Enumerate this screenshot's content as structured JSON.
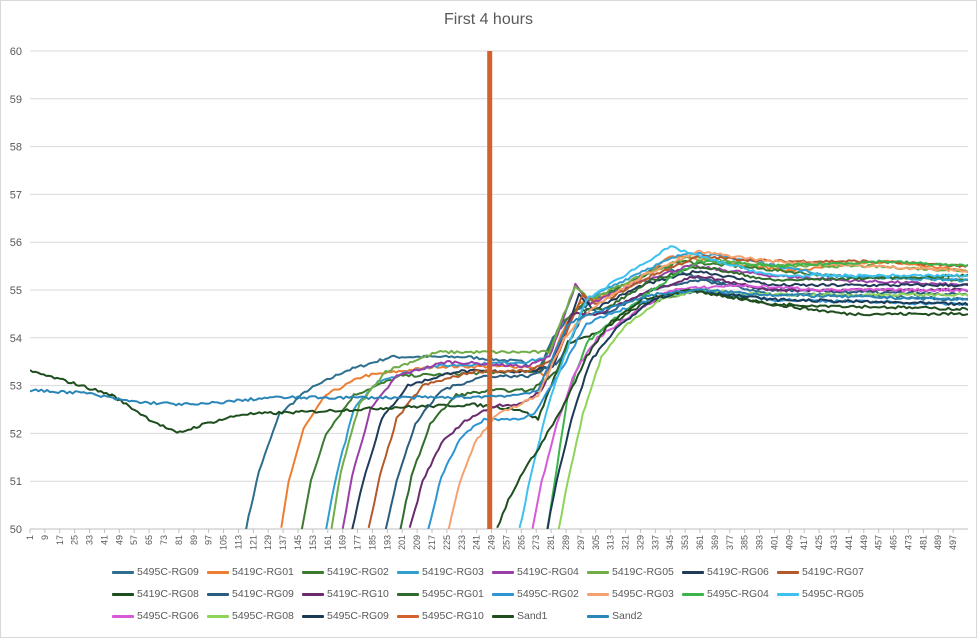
{
  "chart_data": {
    "type": "line",
    "title": "First 4 hours",
    "xlabel": "",
    "ylabel": "",
    "ylim": [
      50,
      60
    ],
    "yticks": [
      50,
      51,
      52,
      53,
      54,
      55,
      56,
      57,
      58,
      59,
      60
    ],
    "xlim": [
      1,
      505
    ],
    "xticks": [
      1,
      9,
      17,
      25,
      33,
      41,
      49,
      57,
      65,
      73,
      81,
      89,
      97,
      105,
      113,
      121,
      129,
      137,
      145,
      153,
      161,
      169,
      177,
      185,
      193,
      201,
      209,
      217,
      225,
      233,
      241,
      249,
      257,
      265,
      273,
      281,
      289,
      297,
      305,
      313,
      321,
      329,
      337,
      345,
      353,
      361,
      369,
      377,
      385,
      393,
      401,
      409,
      417,
      425,
      433,
      441,
      449,
      457,
      465,
      473,
      481,
      489,
      497
    ],
    "grid": "horizontal",
    "legend_position": "bottom",
    "series": [
      {
        "name": "5495C-RG09",
        "color": "#2e6e8e",
        "points": [
          [
            117,
            50
          ],
          [
            124,
            51.2
          ],
          [
            135,
            52.4
          ],
          [
            150,
            52.9
          ],
          [
            170,
            53.3
          ],
          [
            195,
            53.6
          ],
          [
            235,
            53.6
          ],
          [
            265,
            53.5
          ],
          [
            274,
            53.3
          ],
          [
            282,
            54
          ],
          [
            292,
            54.5
          ],
          [
            310,
            54.9
          ],
          [
            340,
            55.5
          ],
          [
            365,
            55.2
          ],
          [
            400,
            54.9
          ],
          [
            440,
            54.9
          ],
          [
            505,
            54.8
          ]
        ]
      },
      {
        "name": "5419C-RG01",
        "color": "#ed7d31",
        "points": [
          [
            136,
            50
          ],
          [
            140,
            51
          ],
          [
            148,
            52.1
          ],
          [
            160,
            52.8
          ],
          [
            180,
            53.2
          ],
          [
            220,
            53.4
          ],
          [
            270,
            53.4
          ],
          [
            278,
            53.2
          ],
          [
            288,
            54.2
          ],
          [
            296,
            54.7
          ],
          [
            320,
            55
          ],
          [
            345,
            55.7
          ],
          [
            370,
            55.6
          ],
          [
            410,
            55.4
          ],
          [
            460,
            55.6
          ],
          [
            505,
            55.4
          ]
        ]
      },
      {
        "name": "5419C-RG02",
        "color": "#3d7a32",
        "points": [
          [
            147,
            50
          ],
          [
            152,
            51
          ],
          [
            160,
            52
          ],
          [
            175,
            52.8
          ],
          [
            200,
            53.2
          ],
          [
            265,
            53.3
          ],
          [
            275,
            53.3
          ],
          [
            286,
            54.3
          ],
          [
            298,
            54.7
          ],
          [
            325,
            55.2
          ],
          [
            350,
            55.6
          ],
          [
            380,
            55.5
          ],
          [
            430,
            55.3
          ],
          [
            505,
            55.2
          ]
        ]
      },
      {
        "name": "5419C-RG03",
        "color": "#2f9fd0",
        "points": [
          [
            160,
            50
          ],
          [
            166,
            51.2
          ],
          [
            175,
            52.5
          ],
          [
            188,
            53.1
          ],
          [
            215,
            53.4
          ],
          [
            268,
            53.5
          ],
          [
            280,
            53.6
          ],
          [
            294,
            55.1
          ],
          [
            300,
            54.8
          ],
          [
            330,
            55.4
          ],
          [
            355,
            55.8
          ],
          [
            390,
            55.6
          ],
          [
            430,
            55.3
          ],
          [
            505,
            55.2
          ]
        ]
      },
      {
        "name": "5419C-RG04",
        "color": "#9b3fa8",
        "points": [
          [
            169,
            50
          ],
          [
            174,
            51.1
          ],
          [
            184,
            52.5
          ],
          [
            198,
            53.2
          ],
          [
            225,
            53.5
          ],
          [
            268,
            53.4
          ],
          [
            280,
            53.6
          ],
          [
            294,
            55.1
          ],
          [
            302,
            54.7
          ],
          [
            330,
            55.2
          ],
          [
            355,
            55.5
          ],
          [
            400,
            55.3
          ],
          [
            440,
            55.2
          ],
          [
            505,
            55.1
          ]
        ]
      },
      {
        "name": "5419C-RG05",
        "color": "#70ad47",
        "points": [
          [
            163,
            50
          ],
          [
            168,
            51.2
          ],
          [
            178,
            52.6
          ],
          [
            192,
            53.3
          ],
          [
            220,
            53.7
          ],
          [
            268,
            53.7
          ],
          [
            280,
            53.7
          ],
          [
            294,
            55.1
          ],
          [
            302,
            54.8
          ],
          [
            330,
            55.3
          ],
          [
            355,
            55.7
          ],
          [
            400,
            55.5
          ],
          [
            450,
            55.5
          ],
          [
            505,
            55.4
          ]
        ]
      },
      {
        "name": "5419C-RG06",
        "color": "#1f3b57",
        "points": [
          [
            174,
            50
          ],
          [
            180,
            51
          ],
          [
            190,
            52.3
          ],
          [
            204,
            53
          ],
          [
            230,
            53.3
          ],
          [
            270,
            53.3
          ],
          [
            282,
            53.4
          ],
          [
            296,
            54.9
          ],
          [
            304,
            54.6
          ],
          [
            330,
            55.1
          ],
          [
            360,
            55.4
          ],
          [
            400,
            55.1
          ],
          [
            450,
            55.1
          ],
          [
            505,
            55.1
          ]
        ]
      },
      {
        "name": "5419C-RG07",
        "color": "#b45a2a",
        "points": [
          [
            183,
            50
          ],
          [
            189,
            51.1
          ],
          [
            198,
            52.3
          ],
          [
            212,
            53
          ],
          [
            240,
            53.3
          ],
          [
            270,
            53.3
          ],
          [
            284,
            53.6
          ],
          [
            298,
            54.9
          ],
          [
            306,
            54.7
          ],
          [
            335,
            55.3
          ],
          [
            360,
            55.7
          ],
          [
            400,
            55.6
          ],
          [
            450,
            55.6
          ],
          [
            505,
            55.5
          ]
        ]
      },
      {
        "name": "5419C-RG08",
        "color": "#1e4d1e",
        "points": [
          [
            1,
            53.3
          ],
          [
            20,
            53.1
          ],
          [
            45,
            52.8
          ],
          [
            65,
            52.3
          ],
          [
            80,
            52
          ],
          [
            95,
            52.2
          ],
          [
            115,
            52.4
          ],
          [
            150,
            52.45
          ],
          [
            200,
            52.55
          ],
          [
            240,
            52.6
          ],
          [
            264,
            52.5
          ],
          [
            274,
            52.3
          ],
          [
            290,
            53.9
          ],
          [
            306,
            54.1
          ],
          [
            330,
            54.7
          ],
          [
            360,
            55
          ],
          [
            400,
            54.7
          ],
          [
            440,
            54.5
          ],
          [
            505,
            54.5
          ]
        ]
      },
      {
        "name": "5419C-RG09",
        "color": "#2a5d80",
        "points": [
          [
            192,
            50
          ],
          [
            198,
            51
          ],
          [
            208,
            52.2
          ],
          [
            222,
            52.9
          ],
          [
            245,
            53.2
          ],
          [
            270,
            53.2
          ],
          [
            285,
            53.5
          ],
          [
            300,
            54.6
          ],
          [
            310,
            54.5
          ],
          [
            335,
            55
          ],
          [
            360,
            55.2
          ],
          [
            400,
            55
          ],
          [
            505,
            54.9
          ]
        ]
      },
      {
        "name": "5419C-RG10",
        "color": "#6a2a6e",
        "points": [
          [
            205,
            50
          ],
          [
            212,
            51
          ],
          [
            222,
            51.8
          ],
          [
            236,
            52.3
          ],
          [
            252,
            52.6
          ],
          [
            264,
            52.6
          ],
          [
            276,
            52.9
          ],
          [
            292,
            54.5
          ],
          [
            306,
            54.5
          ],
          [
            335,
            55
          ],
          [
            360,
            55.3
          ],
          [
            400,
            55
          ],
          [
            505,
            55
          ]
        ]
      },
      {
        "name": "5495C-RG01",
        "color": "#2f6b2a",
        "points": [
          [
            200,
            50
          ],
          [
            206,
            51.1
          ],
          [
            216,
            52.2
          ],
          [
            230,
            52.8
          ],
          [
            250,
            52.9
          ],
          [
            270,
            52.9
          ],
          [
            284,
            53.3
          ],
          [
            298,
            54.6
          ],
          [
            310,
            54.6
          ],
          [
            335,
            55.2
          ],
          [
            360,
            55.5
          ],
          [
            400,
            55.2
          ],
          [
            505,
            55.3
          ]
        ]
      },
      {
        "name": "5495C-RG02",
        "color": "#2e95d3",
        "points": [
          [
            215,
            50
          ],
          [
            222,
            51.1
          ],
          [
            232,
            51.9
          ],
          [
            245,
            52.3
          ],
          [
            262,
            52.3
          ],
          [
            272,
            52.4
          ],
          [
            286,
            53.3
          ],
          [
            300,
            54.3
          ],
          [
            312,
            54.5
          ],
          [
            335,
            54.8
          ],
          [
            360,
            55
          ],
          [
            400,
            54.8
          ],
          [
            505,
            54.7
          ]
        ]
      },
      {
        "name": "5495C-RG03",
        "color": "#f4a270",
        "points": [
          [
            226,
            50
          ],
          [
            232,
            51
          ],
          [
            240,
            51.8
          ],
          [
            252,
            52.4
          ],
          [
            264,
            52.6
          ],
          [
            274,
            52.8
          ],
          [
            288,
            54
          ],
          [
            302,
            54.6
          ],
          [
            330,
            55.3
          ],
          [
            360,
            55.8
          ],
          [
            400,
            55.6
          ],
          [
            505,
            55.4
          ]
        ]
      },
      {
        "name": "5495C-RG04",
        "color": "#3cb44b",
        "points": [
          [
            279,
            50
          ],
          [
            283,
            51
          ],
          [
            290,
            52.8
          ],
          [
            300,
            53.9
          ],
          [
            315,
            54.4
          ],
          [
            335,
            55
          ],
          [
            360,
            55.6
          ],
          [
            400,
            55.5
          ],
          [
            460,
            55.6
          ],
          [
            505,
            55.5
          ]
        ]
      },
      {
        "name": "5495C-RG05",
        "color": "#3ec1ee",
        "points": [
          [
            264,
            50
          ],
          [
            270,
            51.1
          ],
          [
            278,
            52.4
          ],
          [
            288,
            53.6
          ],
          [
            300,
            54.8
          ],
          [
            320,
            55.3
          ],
          [
            345,
            55.9
          ],
          [
            370,
            55.6
          ],
          [
            400,
            55.3
          ],
          [
            505,
            55.3
          ]
        ]
      },
      {
        "name": "5495C-RG06",
        "color": "#d65ad8",
        "points": [
          [
            271,
            50
          ],
          [
            276,
            51
          ],
          [
            284,
            52.2
          ],
          [
            294,
            53.3
          ],
          [
            306,
            54
          ],
          [
            325,
            54.5
          ],
          [
            345,
            55
          ],
          [
            380,
            55.1
          ],
          [
            430,
            55
          ],
          [
            505,
            55
          ]
        ]
      },
      {
        "name": "5495C-RG08",
        "color": "#8fd45a",
        "points": [
          [
            285,
            50
          ],
          [
            290,
            51
          ],
          [
            298,
            52.4
          ],
          [
            308,
            53.6
          ],
          [
            322,
            54.3
          ],
          [
            340,
            54.8
          ],
          [
            360,
            55
          ],
          [
            400,
            54.9
          ],
          [
            505,
            54.9
          ]
        ]
      },
      {
        "name": "5495C-RG09",
        "color": "#1c3a55",
        "points": [
          [
            279,
            50
          ],
          [
            284,
            51
          ],
          [
            292,
            52.3
          ],
          [
            302,
            53.5
          ],
          [
            316,
            54.2
          ],
          [
            335,
            54.8
          ],
          [
            355,
            55
          ],
          [
            400,
            54.8
          ],
          [
            505,
            54.7
          ]
        ]
      },
      {
        "name": "5495C-RG10",
        "color": "#d2622a",
        "points": [
          [
            248,
            60
          ],
          [
            248,
            50
          ]
        ]
      },
      {
        "name": "Sand1",
        "color": "#1f4e1f",
        "points": [
          [
            252,
            50
          ],
          [
            258,
            50.6
          ],
          [
            266,
            51.2
          ],
          [
            276,
            51.8
          ],
          [
            288,
            52.6
          ],
          [
            300,
            53.6
          ],
          [
            312,
            54.3
          ],
          [
            330,
            54.8
          ],
          [
            355,
            55
          ],
          [
            400,
            54.7
          ],
          [
            505,
            54.6
          ]
        ]
      },
      {
        "name": "Sand2",
        "color": "#2a86b8",
        "points": [
          [
            1,
            52.9
          ],
          [
            30,
            52.85
          ],
          [
            50,
            52.7
          ],
          [
            60,
            52.65
          ],
          [
            90,
            52.6
          ],
          [
            130,
            52.75
          ],
          [
            180,
            52.75
          ],
          [
            230,
            52.75
          ],
          [
            262,
            52.8
          ],
          [
            274,
            52.9
          ],
          [
            290,
            54.3
          ],
          [
            310,
            54.6
          ],
          [
            335,
            54.9
          ],
          [
            360,
            55
          ],
          [
            400,
            54.9
          ],
          [
            505,
            54.8
          ]
        ]
      }
    ]
  }
}
